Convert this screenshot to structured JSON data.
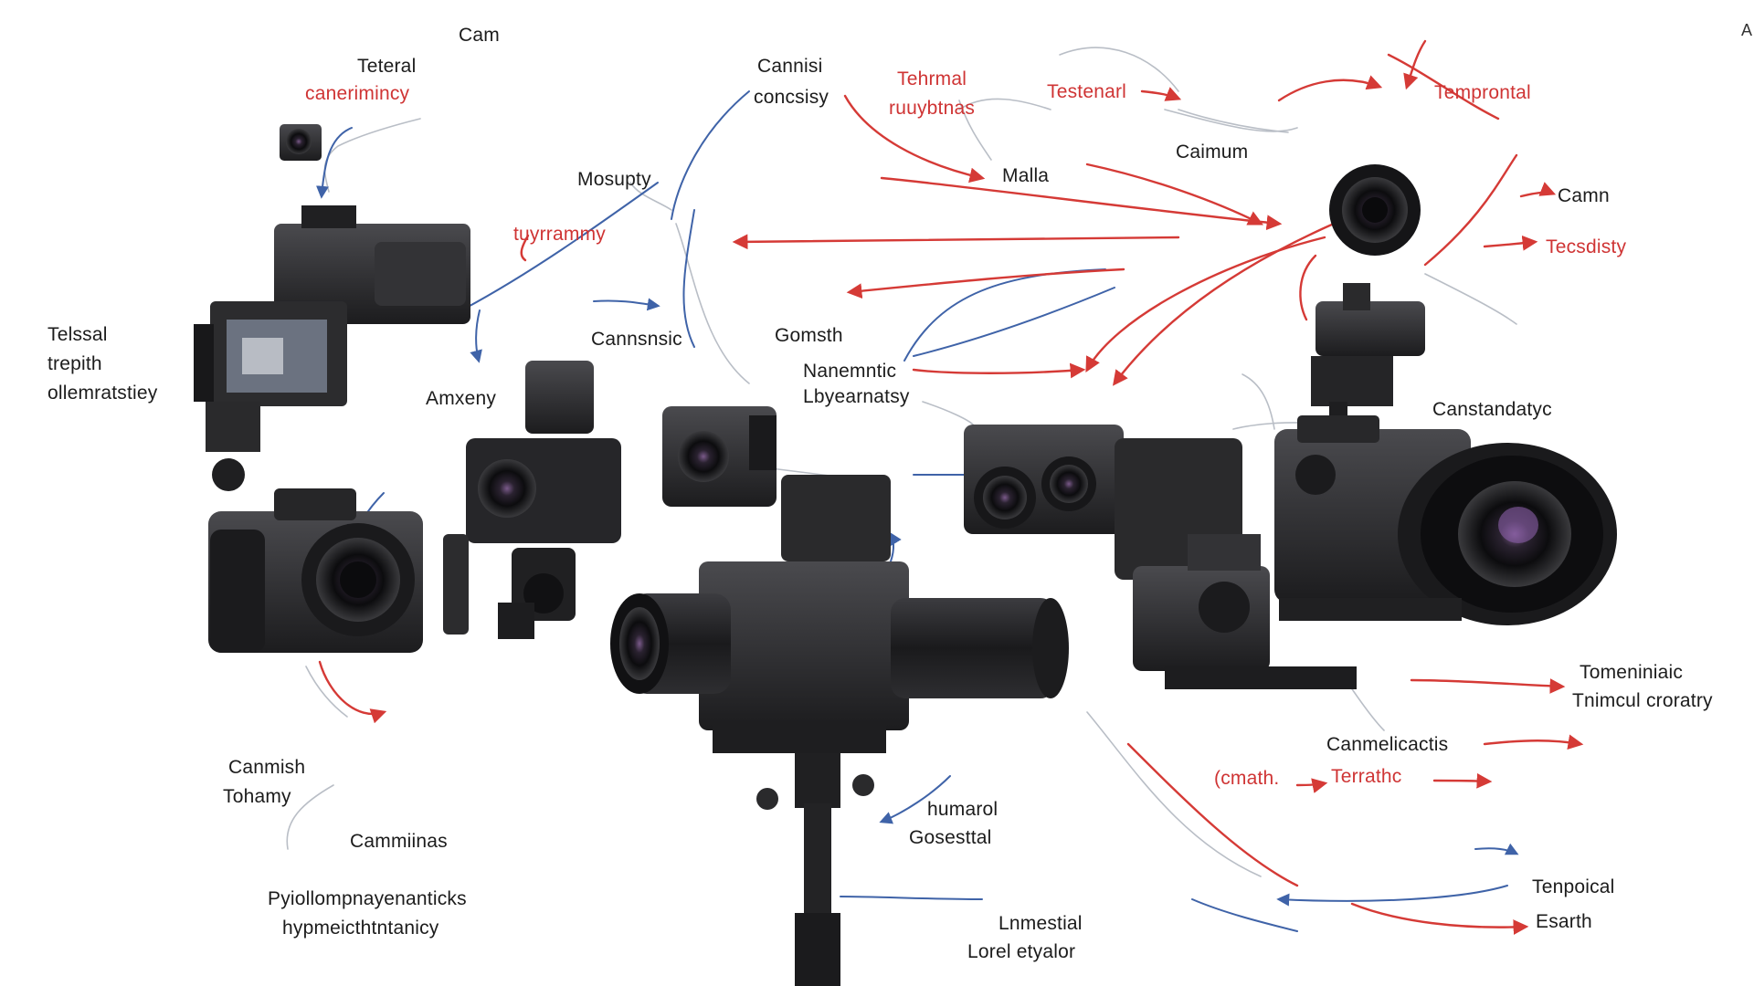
{
  "colors": {
    "red": "#d53a36",
    "blue": "#3f63a8",
    "gray": "#b9bec6",
    "body": "#2a2a2c"
  },
  "labels": {
    "cam_top": "Cam",
    "teteral": "Teteral",
    "canerimincy": "canerimincy",
    "cannisi": "Cannisi",
    "concsisy": "concsisy",
    "tehrmal": "Tehrmal",
    "ruuybtnas": "ruuybtnas",
    "testenarl": "Testenarl",
    "temprontal": "Temprontal",
    "mosupty": "Mosupty",
    "malla": "Malla",
    "caimum": "Caimum",
    "cam_right": "Camn",
    "tuyrrammy": "tuyrrammy",
    "tecsdisty": "Tecsdisty",
    "telssal": "Telssal",
    "trepith": "trepith",
    "ollemratstiey": "ollemratstiey",
    "cannsnsic": "Cannsnsic",
    "gomsth": "Gomsth",
    "nanemntic": "Nanemntic",
    "lbyearnatsy": "Lbyearnatsy",
    "amxeny": "Amxeny",
    "canstandatyc": "Canstandatyc",
    "tomeniniaic": "Tomeniniaic",
    "tnimcul_croratry": "Tnimcul croratry",
    "canmelicactis": "Canmelicactis",
    "cmath": "(cmath.",
    "terrathc": "Terrathc",
    "canmish": "Canmish",
    "tohamy": "Tohamy",
    "cammiinas": "Cammiinas",
    "humarol": "humarol",
    "gosesttal": "Gosesttal",
    "pyiollompnayenanticks": "Pyiollompnayenanticks",
    "hypmeicthtntanicy": "hypmeicthtntanicy",
    "lnmestial": "Lnmestial",
    "lorel_etyalor": "Lorel  etyalor",
    "tenpoical": "Tenpoical",
    "esarth": "Esarth",
    "corner_mark": "A"
  }
}
